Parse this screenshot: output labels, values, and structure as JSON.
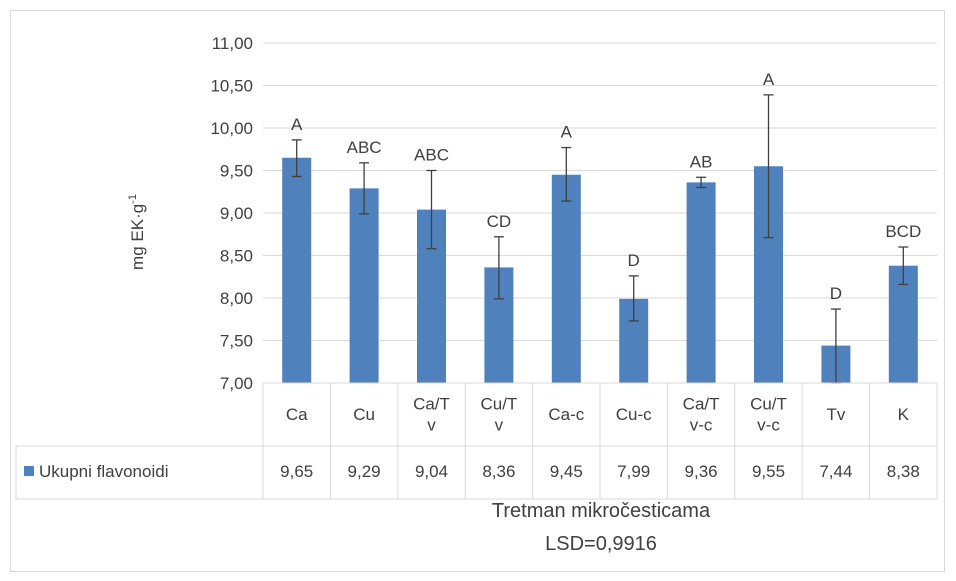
{
  "chart_data": {
    "type": "bar",
    "categories": [
      "Ca",
      "Cu",
      "Ca/Tv",
      "Cu/Tv",
      "Ca-c",
      "Cu-c",
      "Ca/Tv-c",
      "Cu/Tv-c",
      "Tv",
      "K"
    ],
    "category_lines": [
      [
        "Ca"
      ],
      [
        "Cu"
      ],
      [
        "Ca/T",
        "v"
      ],
      [
        "Cu/T",
        "v"
      ],
      [
        "Ca-c"
      ],
      [
        "Cu-c"
      ],
      [
        "Ca/T",
        "v-c"
      ],
      [
        "Cu/T",
        "v-c"
      ],
      [
        "Tv"
      ],
      [
        "K"
      ]
    ],
    "series": [
      {
        "name": "Ukupni flavonoidi",
        "values": [
          9.65,
          9.29,
          9.04,
          8.36,
          9.45,
          7.99,
          9.36,
          9.55,
          7.44,
          8.38
        ],
        "value_labels": [
          "9,65",
          "9,29",
          "9,04",
          "8,36",
          "9,45",
          "7,99",
          "9,36",
          "9,55",
          "7,44",
          "8,38"
        ],
        "error_low": [
          9.43,
          8.99,
          8.58,
          7.99,
          9.14,
          7.73,
          9.3,
          8.71,
          7.0,
          8.16
        ],
        "error_high": [
          9.86,
          9.59,
          9.5,
          8.72,
          9.77,
          8.26,
          9.42,
          10.39,
          7.87,
          8.6
        ],
        "letters": [
          "A",
          "ABC",
          "ABC",
          "CD",
          "A",
          "D",
          "AB",
          "A",
          "D",
          "BCD"
        ]
      }
    ],
    "ylim": [
      7.0,
      11.0
    ],
    "yticks": [
      7.0,
      7.5,
      8.0,
      8.5,
      9.0,
      9.5,
      10.0,
      10.5,
      11.0
    ],
    "ytick_labels": [
      "7,00",
      "7,50",
      "8,00",
      "8,50",
      "9,00",
      "9,50",
      "10,00",
      "10,50",
      "11,00"
    ],
    "ylabel": "mg EK·g",
    "ylabel_sup": "-1",
    "xlabel": "Tretman mikročesticama",
    "subtitle": "LSD=0,9916",
    "grid": true,
    "data_table": true,
    "colors": {
      "bar": "#4f81bd",
      "grid": "#d9d9d9",
      "text": "#404040",
      "error": "#404040"
    }
  }
}
